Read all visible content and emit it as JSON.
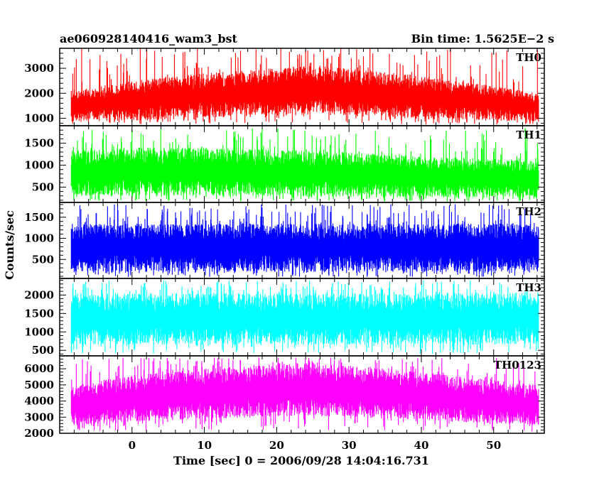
{
  "header": {
    "left_title": "ae060928140416_wam3_bst",
    "right_title": "Bin time: 1.5625E−2 s"
  },
  "chart_data": {
    "type": "line",
    "xlabel": "Time [sec] 0 = 2006/09/28 14:04:16.731",
    "ylabel": "Counts/sec",
    "xlim": [
      -10,
      57
    ],
    "x_data_range": [
      -8.4,
      56.2
    ],
    "x_ticks": [
      0,
      10,
      20,
      30,
      40,
      50
    ],
    "x_tick_labels": [
      "0",
      "10",
      "20",
      "30",
      "40",
      "50"
    ],
    "panels": [
      {
        "name": "TH0",
        "color": "#ff0000",
        "ylim": [
          700,
          3800
        ],
        "y_ticks": [
          1000,
          2000,
          3000
        ],
        "y_tick_labels": [
          "1000",
          "2000",
          "3000"
        ],
        "trend_x": [
          -8,
          0,
          10,
          20,
          25,
          30,
          40,
          50,
          56
        ],
        "trend_upper": [
          2100,
          2500,
          2800,
          3000,
          3100,
          3000,
          2700,
          2300,
          2000
        ],
        "trend_lower": [
          850,
          900,
          1000,
          1150,
          1200,
          1100,
          950,
          900,
          850
        ],
        "peak_max": 3800
      },
      {
        "name": "TH1",
        "color": "#00ff00",
        "ylim": [
          150,
          1900
        ],
        "y_ticks": [
          500,
          1000,
          1500
        ],
        "y_tick_labels": [
          "500",
          "1000",
          "1500"
        ],
        "trend_x": [
          -8,
          0,
          10,
          20,
          30,
          40,
          50,
          56
        ],
        "trend_upper": [
          1350,
          1400,
          1400,
          1350,
          1300,
          1200,
          1150,
          1100
        ],
        "trend_lower": [
          300,
          300,
          300,
          280,
          270,
          260,
          260,
          250
        ],
        "peak_max": 1850
      },
      {
        "name": "TH2",
        "color": "#0000ff",
        "ylim": [
          50,
          1850
        ],
        "y_ticks": [
          500,
          1000,
          1500
        ],
        "y_tick_labels": [
          "500",
          "1000",
          "1500"
        ],
        "trend_x": [
          -8,
          0,
          10,
          20,
          30,
          40,
          50,
          56
        ],
        "trend_upper": [
          1350,
          1350,
          1350,
          1350,
          1350,
          1350,
          1350,
          1350
        ],
        "trend_lower": [
          200,
          200,
          200,
          200,
          200,
          200,
          200,
          200
        ],
        "peak_max": 1820
      },
      {
        "name": "TH3",
        "color": "#00ffff",
        "ylim": [
          350,
          2450
        ],
        "y_ticks": [
          500,
          1000,
          1500,
          2000
        ],
        "y_tick_labels": [
          "500",
          "1000",
          "1500",
          "2000"
        ],
        "trend_x": [
          -8,
          0,
          10,
          20,
          30,
          40,
          50,
          56
        ],
        "trend_upper": [
          2050,
          2050,
          2050,
          2050,
          2050,
          2050,
          2050,
          2050
        ],
        "trend_lower": [
          650,
          650,
          650,
          650,
          650,
          650,
          650,
          650
        ],
        "peak_max": 2400
      },
      {
        "name": "TH0123",
        "color": "#ff00ff",
        "ylim": [
          2000,
          6800
        ],
        "y_ticks": [
          2000,
          3000,
          4000,
          5000,
          6000
        ],
        "y_tick_labels": [
          "2000",
          "3000",
          "4000",
          "5000",
          "6000"
        ],
        "trend_x": [
          -8,
          0,
          10,
          20,
          25,
          30,
          40,
          50,
          56
        ],
        "trend_upper": [
          5000,
          5600,
          6000,
          6300,
          6400,
          6200,
          5800,
          5300,
          5000
        ],
        "trend_lower": [
          2500,
          2700,
          2900,
          3000,
          3100,
          3000,
          2800,
          2600,
          2500
        ],
        "peak_max": 6700
      }
    ]
  }
}
